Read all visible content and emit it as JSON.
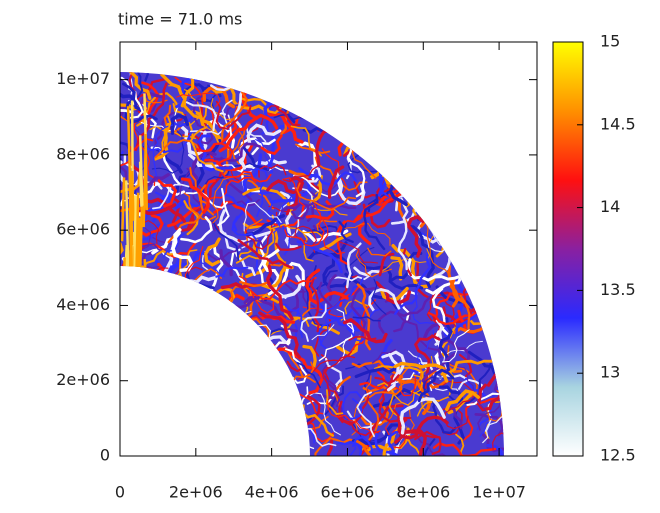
{
  "chart_data": {
    "type": "heatmap",
    "title": "time = 71.0 ms",
    "xlim": [
      0,
      11000000
    ],
    "ylim": [
      0,
      11000000
    ],
    "xticks": [
      0,
      {
        "value": 2000000,
        "label": "2e+06"
      },
      {
        "value": 4000000,
        "label": "4e+06"
      },
      {
        "value": 6000000,
        "label": "6e+06"
      },
      {
        "value": 8000000,
        "label": "8e+06"
      },
      {
        "value": 10000000,
        "label": "1e+07"
      }
    ],
    "yticks": [
      0,
      {
        "value": 2000000,
        "label": "2e+06"
      },
      {
        "value": 4000000,
        "label": "4e+06"
      },
      {
        "value": 6000000,
        "label": "6e+06"
      },
      {
        "value": 8000000,
        "label": "8e+06"
      },
      {
        "value": 10000000,
        "label": "1e+07"
      }
    ],
    "colorbar": {
      "lim": [
        12.5,
        15
      ],
      "ticks": [
        12.5,
        13,
        13.5,
        14,
        14.5,
        15
      ],
      "colors": [
        "#ffffff",
        "#a8d4e0",
        "#2a2aff",
        "#8a20a0",
        "#ff1010",
        "#ff9000",
        "#ffff00"
      ]
    }
  }
}
